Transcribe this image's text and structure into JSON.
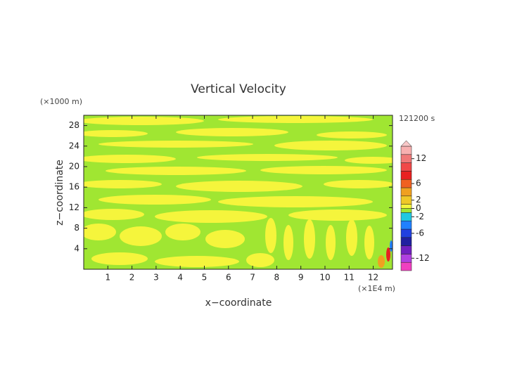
{
  "chart_data": {
    "type": "contour",
    "title": "Vertical Velocity",
    "xlabel": "x−coordinate",
    "ylabel": "z−coordinate",
    "x_unit": "(×1E4 m)",
    "y_unit": "(×1000 m)",
    "time_label": "121200 s",
    "xlim": [
      0,
      12.8
    ],
    "xticks": [
      1,
      2,
      3,
      4,
      5,
      6,
      7,
      8,
      9,
      10,
      11,
      12
    ],
    "ylim": [
      0,
      30
    ],
    "yticks": [
      4,
      8,
      12,
      16,
      20,
      24,
      28
    ],
    "colorbar": {
      "lim": [
        -15,
        15
      ],
      "bounds": [
        -15,
        -13,
        -11,
        -9,
        -7,
        -5,
        -3,
        -1,
        0,
        1,
        3,
        5,
        7,
        9,
        11,
        13,
        15
      ],
      "colors": [
        "#f040c0",
        "#b040e0",
        "#7020c0",
        "#2020a0",
        "#2040e0",
        "#2080ff",
        "#20c8e0",
        "#a0e632",
        "#f5f53c",
        "#f0c828",
        "#f0a020",
        "#f06020",
        "#e82020",
        "#f04848",
        "#f07878",
        "#f8b0b0"
      ],
      "extend_color": "#f8c8c8",
      "ticks": [
        12,
        6,
        2,
        0,
        -2,
        -6,
        -12
      ]
    }
  }
}
